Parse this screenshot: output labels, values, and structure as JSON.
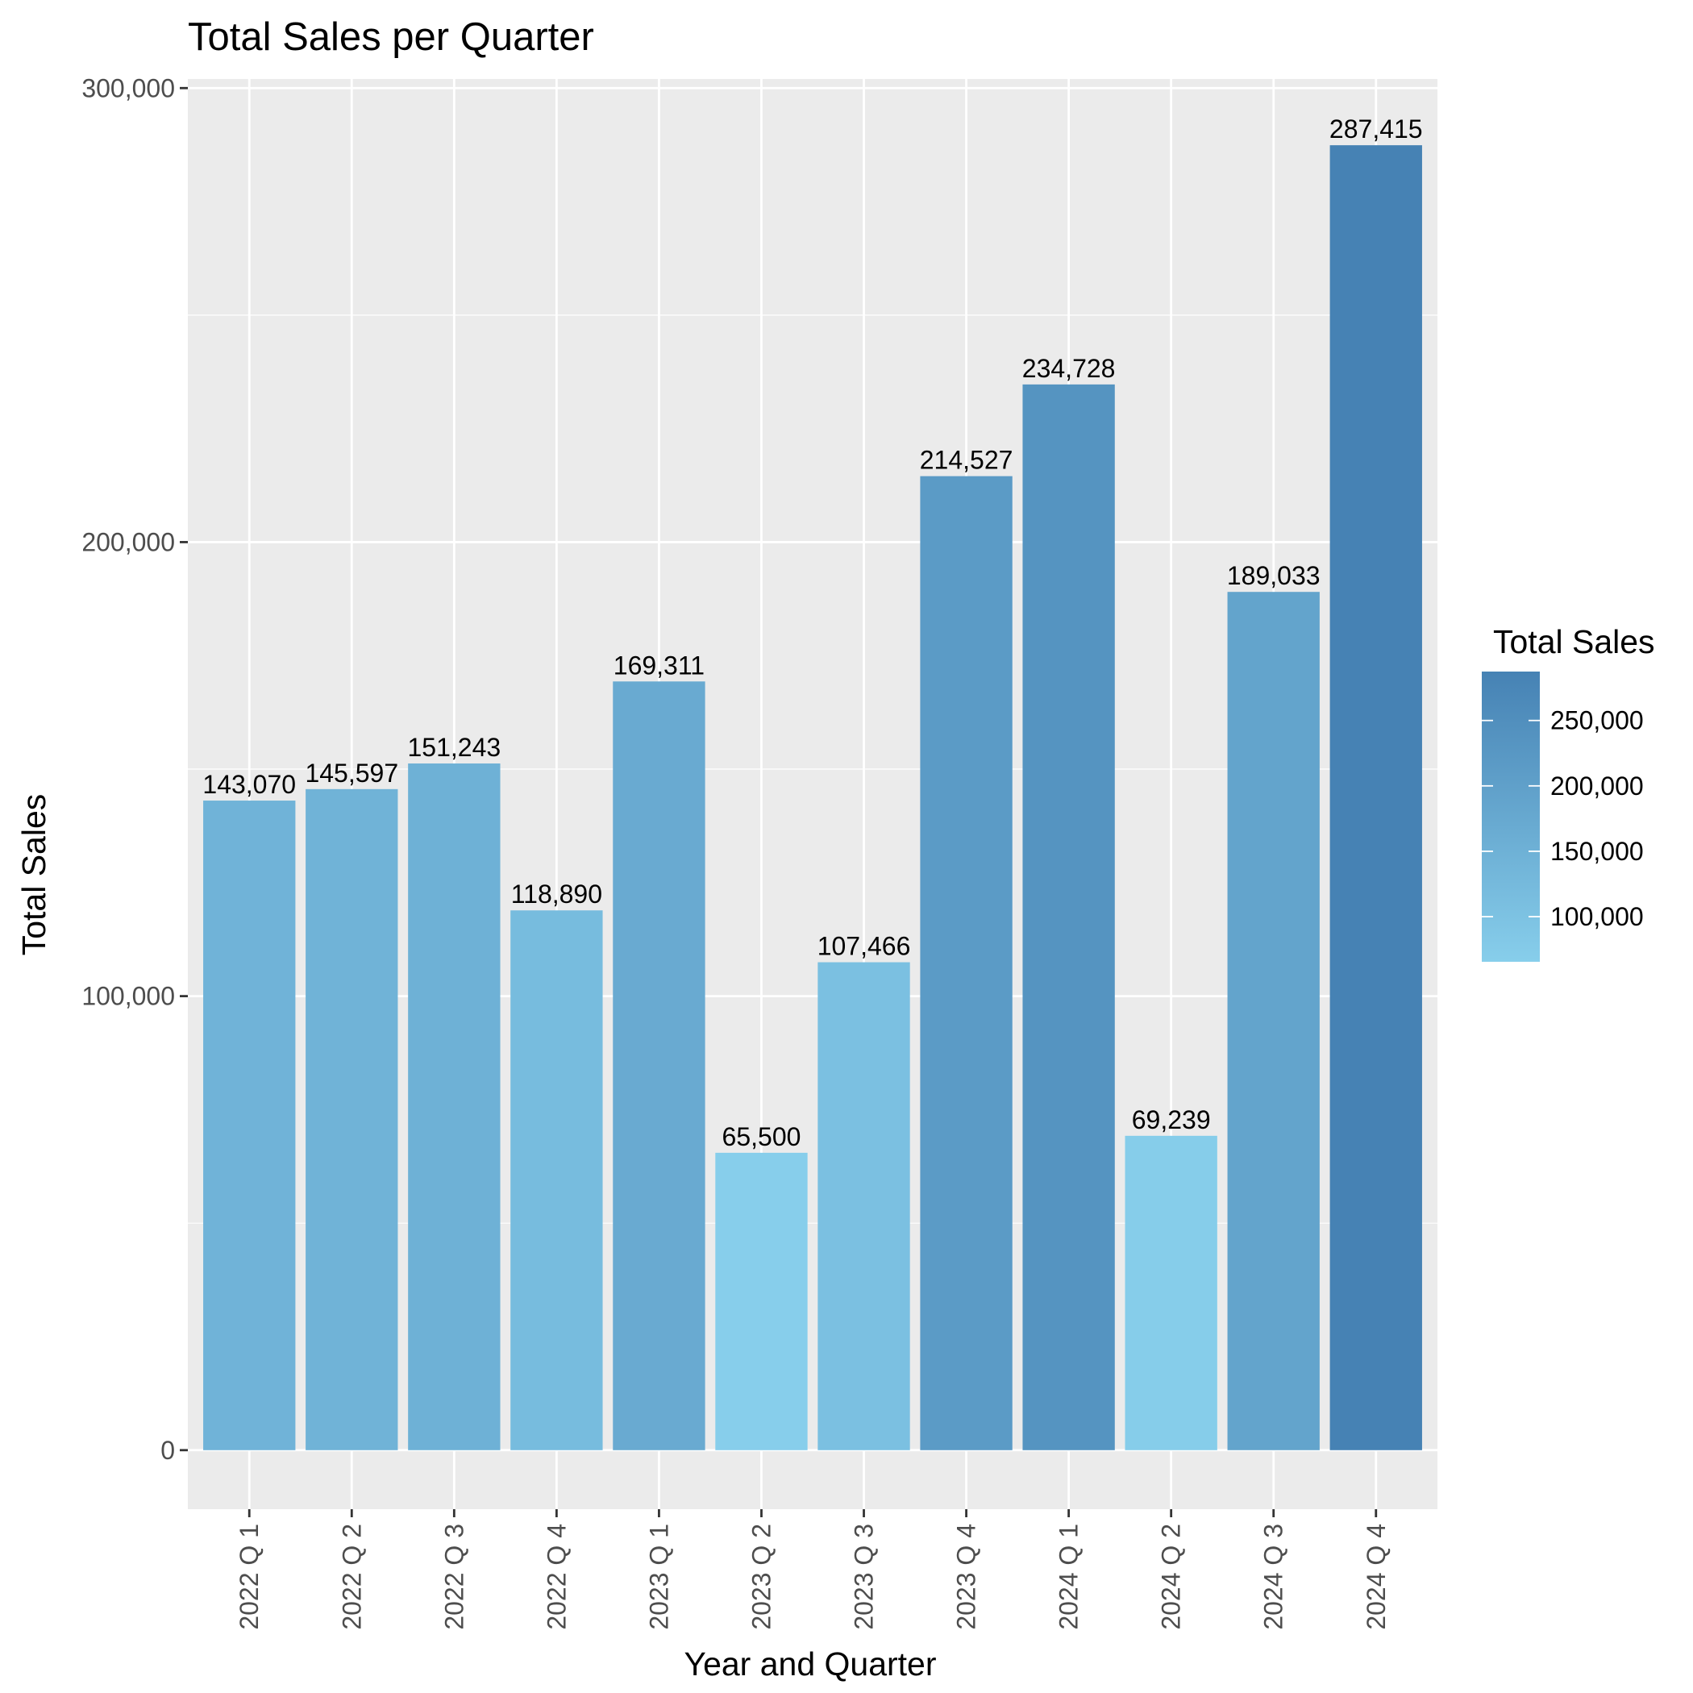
{
  "chart_data": {
    "type": "bar",
    "title": "Total Sales per Quarter",
    "xlabel": "Year and Quarter",
    "ylabel": "Total Sales",
    "categories": [
      "2022 Q 1",
      "2022 Q 2",
      "2022 Q 3",
      "2022 Q 4",
      "2023 Q 1",
      "2023 Q 2",
      "2023 Q 3",
      "2023 Q 4",
      "2024 Q 1",
      "2024 Q 2",
      "2024 Q 3",
      "2024 Q 4"
    ],
    "values": [
      143070,
      145597,
      151243,
      118890,
      169311,
      65500,
      107466,
      214527,
      234728,
      69239,
      189033,
      287415
    ],
    "value_labels": [
      "143,070",
      "145,597",
      "151,243",
      "118,890",
      "169,311",
      "65,500",
      "107,466",
      "214,527",
      "234,728",
      "69,239",
      "189,033",
      "287,415"
    ],
    "ylim": [
      -13000,
      302000
    ],
    "y_ticks": [
      0,
      100000,
      200000,
      300000
    ],
    "y_tick_labels": [
      "0",
      "100,000",
      "200,000",
      "300,000"
    ],
    "grid": true,
    "legend": {
      "title": "Total Sales",
      "position": "right",
      "type": "colorbar",
      "range": [
        65500,
        287415
      ],
      "breaks": [
        100000,
        150000,
        200000,
        250000
      ],
      "break_labels": [
        "100,000",
        "150,000",
        "200,000",
        "250,000"
      ],
      "low_color": "#87CEEB",
      "high_color": "#4682B4"
    },
    "colors": {
      "panel_background": "#EBEBEB",
      "grid_major": "#FFFFFF",
      "grid_minor": "#FFFFFF",
      "tick_color": "#333333"
    }
  }
}
